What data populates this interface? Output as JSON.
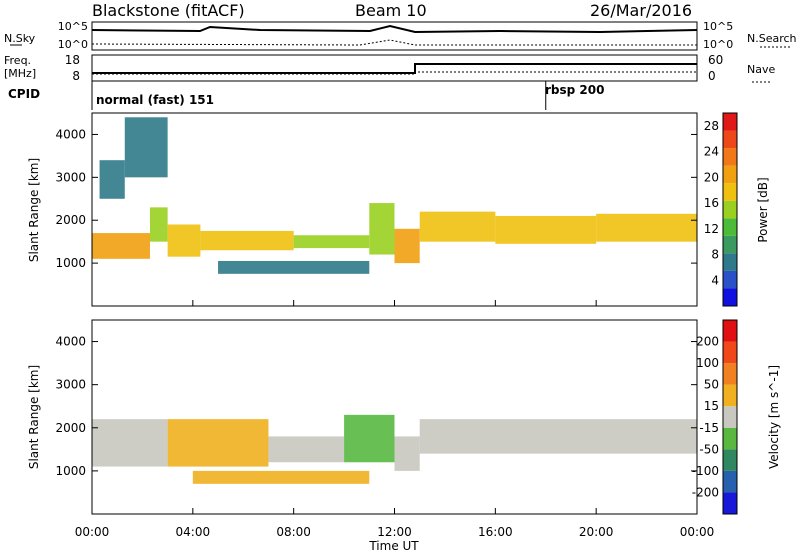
{
  "header": {
    "left": "Blackstone (fitACF)",
    "center": "Beam 10",
    "right": "26/Mar/2016"
  },
  "noise_panel": {
    "left_label": "N.Sky",
    "right_label": "N.Search",
    "left_ticks": [
      "10^5",
      "10^0"
    ],
    "right_ticks": [
      "10^5",
      "10^0"
    ]
  },
  "freq_panel": {
    "left_label_top": "Freq.",
    "left_label_bottom": "[MHz]",
    "left_ticks": [
      "18",
      "8"
    ],
    "right_label": "Nave",
    "right_ticks": [
      "60",
      "0"
    ]
  },
  "cpid": {
    "label": "CPID",
    "mode1": "normal (fast) 151",
    "mode2": "rbsp 200",
    "change_hour": 18.0
  },
  "chart_data": [
    {
      "type": "heatmap",
      "name": "power",
      "ylabel": "Slant Range [km]",
      "xlabel": "Time UT",
      "xlim": [
        0,
        24
      ],
      "ylim": [
        0,
        4500
      ],
      "x_ticks": [
        "00:00",
        "04:00",
        "08:00",
        "12:00",
        "16:00",
        "20:00",
        "00:00"
      ],
      "y_ticks": [
        "1000",
        "2000",
        "3000",
        "4000"
      ],
      "colorbar": {
        "label": "Power [dB]",
        "ticks": [
          "4",
          "8",
          "12",
          "16",
          "20",
          "24",
          "28"
        ],
        "range": [
          0,
          30
        ],
        "colors": [
          "#1010e0",
          "#2a52c8",
          "#2f7a8a",
          "#3a9a60",
          "#4cbb38",
          "#9ad020",
          "#f0c010",
          "#f0a010",
          "#f07818",
          "#ee4818",
          "#e01818"
        ]
      },
      "bands": [
        {
          "t0": 0.0,
          "t1": 2.3,
          "r0": 1100,
          "r1": 1700,
          "p": 20
        },
        {
          "t0": 2.3,
          "t1": 3.0,
          "r0": 1500,
          "r1": 2300,
          "p": 14
        },
        {
          "t0": 3.0,
          "t1": 4.3,
          "r0": 1150,
          "r1": 1900,
          "p": 18
        },
        {
          "t0": 4.3,
          "t1": 8.0,
          "r0": 1300,
          "r1": 1750,
          "p": 17
        },
        {
          "t0": 8.0,
          "t1": 11.0,
          "r0": 1350,
          "r1": 1650,
          "p": 14
        },
        {
          "t0": 11.0,
          "t1": 12.0,
          "r0": 1200,
          "r1": 2400,
          "p": 16
        },
        {
          "t0": 12.0,
          "t1": 13.0,
          "r0": 1000,
          "r1": 1800,
          "p": 20
        },
        {
          "t0": 13.0,
          "t1": 16.0,
          "r0": 1500,
          "r1": 2200,
          "p": 18
        },
        {
          "t0": 16.0,
          "t1": 20.0,
          "r0": 1450,
          "r1": 2100,
          "p": 18
        },
        {
          "t0": 20.0,
          "t1": 24.0,
          "r0": 1500,
          "r1": 2150,
          "p": 19
        },
        {
          "t0": 0.3,
          "t1": 1.3,
          "r0": 2500,
          "r1": 3400,
          "p": 6
        },
        {
          "t0": 1.3,
          "t1": 3.0,
          "r0": 3000,
          "r1": 4400,
          "p": 7
        },
        {
          "t0": 5.0,
          "t1": 11.0,
          "r0": 750,
          "r1": 1050,
          "p": 6
        }
      ]
    },
    {
      "type": "heatmap",
      "name": "velocity",
      "ylabel": "Slant Range [km]",
      "xlabel": "Time UT",
      "xlim": [
        0,
        24
      ],
      "ylim": [
        0,
        4500
      ],
      "x_ticks": [
        "00:00",
        "04:00",
        "08:00",
        "12:00",
        "16:00",
        "20:00",
        "00:00"
      ],
      "y_ticks": [
        "1000",
        "2000",
        "3000",
        "4000"
      ],
      "colorbar": {
        "label": "Velocity [m s^-1]",
        "ticks": [
          "200",
          "100",
          "50",
          "15",
          "-15",
          "-50",
          "-100",
          "-200"
        ],
        "colors": [
          "#1818d8",
          "#2860b0",
          "#308860",
          "#58b840",
          "#c8c8c0",
          "#f0b020",
          "#f08020",
          "#f04818",
          "#e01010"
        ]
      },
      "bands": [
        {
          "t0": 0.0,
          "t1": 3.0,
          "r0": 1100,
          "r1": 2200,
          "v": "gray"
        },
        {
          "t0": 3.0,
          "t1": 7.0,
          "r0": 1100,
          "r1": 2200,
          "v": "orange"
        },
        {
          "t0": 7.0,
          "t1": 10.0,
          "r0": 1200,
          "r1": 1800,
          "v": "gray"
        },
        {
          "t0": 10.0,
          "t1": 12.0,
          "r0": 1200,
          "r1": 2300,
          "v": "green"
        },
        {
          "t0": 12.0,
          "t1": 13.0,
          "r0": 1000,
          "r1": 1800,
          "v": "gray"
        },
        {
          "t0": 13.0,
          "t1": 24.0,
          "r0": 1400,
          "r1": 2200,
          "v": "gray"
        },
        {
          "t0": 4.0,
          "t1": 11.0,
          "r0": 700,
          "r1": 1000,
          "v": "orange"
        }
      ]
    }
  ]
}
